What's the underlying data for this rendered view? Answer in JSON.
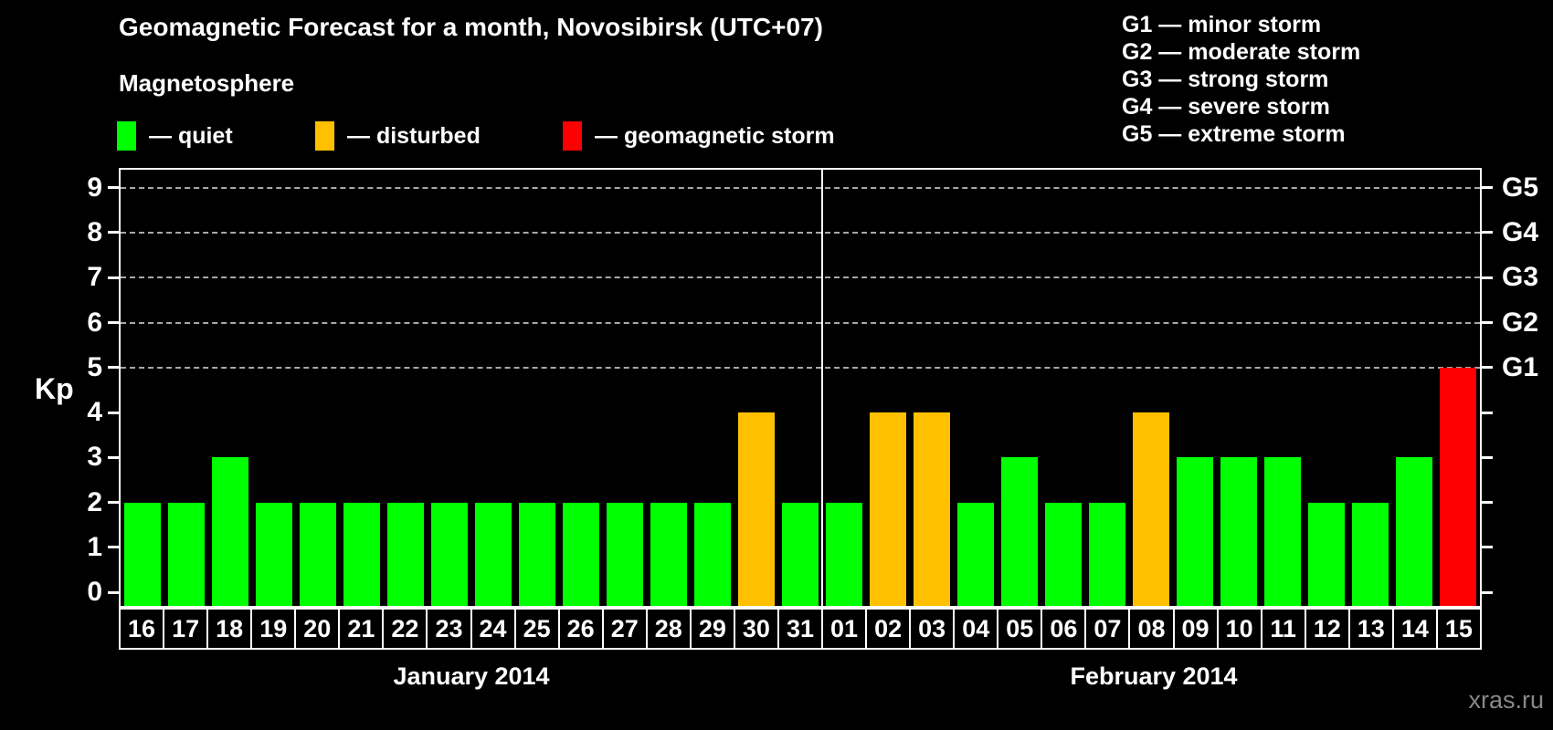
{
  "header": {
    "title": "Geomagnetic Forecast for a month, Novosibirsk (UTC+07)",
    "subtitle": "Magnetosphere"
  },
  "legend": [
    {
      "key": "quiet",
      "label": "— quiet",
      "color": "#00ff00"
    },
    {
      "key": "disturbed",
      "label": "— disturbed",
      "color": "#ffc000"
    },
    {
      "key": "storm",
      "label": "— geomagnetic storm",
      "color": "#ff0000"
    }
  ],
  "storm_scale": [
    "G1 — minor storm",
    "G2 — moderate storm",
    "G3 — strong storm",
    "G4 — severe storm",
    "G5 — extreme storm"
  ],
  "chart_data": {
    "type": "bar",
    "title": "Geomagnetic Forecast for a month, Novosibirsk (UTC+07)",
    "ylabel": "Kp",
    "ylim": [
      -0.3,
      9.4
    ],
    "yticks": [
      0,
      1,
      2,
      3,
      4,
      5,
      6,
      7,
      8,
      9
    ],
    "grid_levels": [
      5,
      6,
      7,
      8,
      9
    ],
    "right_axis": [
      {
        "kp": 5,
        "label": "G1"
      },
      {
        "kp": 6,
        "label": "G2"
      },
      {
        "kp": 7,
        "label": "G3"
      },
      {
        "kp": 8,
        "label": "G4"
      },
      {
        "kp": 9,
        "label": "G5"
      }
    ],
    "months": [
      {
        "label": "January 2014",
        "days": [
          {
            "day": "16",
            "kp": 2,
            "status": "quiet"
          },
          {
            "day": "17",
            "kp": 2,
            "status": "quiet"
          },
          {
            "day": "18",
            "kp": 3,
            "status": "quiet"
          },
          {
            "day": "19",
            "kp": 2,
            "status": "quiet"
          },
          {
            "day": "20",
            "kp": 2,
            "status": "quiet"
          },
          {
            "day": "21",
            "kp": 2,
            "status": "quiet"
          },
          {
            "day": "22",
            "kp": 2,
            "status": "quiet"
          },
          {
            "day": "23",
            "kp": 2,
            "status": "quiet"
          },
          {
            "day": "24",
            "kp": 2,
            "status": "quiet"
          },
          {
            "day": "25",
            "kp": 2,
            "status": "quiet"
          },
          {
            "day": "26",
            "kp": 2,
            "status": "quiet"
          },
          {
            "day": "27",
            "kp": 2,
            "status": "quiet"
          },
          {
            "day": "28",
            "kp": 2,
            "status": "quiet"
          },
          {
            "day": "29",
            "kp": 2,
            "status": "quiet"
          },
          {
            "day": "30",
            "kp": 4,
            "status": "disturbed"
          },
          {
            "day": "31",
            "kp": 2,
            "status": "quiet"
          }
        ]
      },
      {
        "label": "February 2014",
        "days": [
          {
            "day": "01",
            "kp": 2,
            "status": "quiet"
          },
          {
            "day": "02",
            "kp": 4,
            "status": "disturbed"
          },
          {
            "day": "03",
            "kp": 4,
            "status": "disturbed"
          },
          {
            "day": "04",
            "kp": 2,
            "status": "quiet"
          },
          {
            "day": "05",
            "kp": 3,
            "status": "quiet"
          },
          {
            "day": "06",
            "kp": 2,
            "status": "quiet"
          },
          {
            "day": "07",
            "kp": 2,
            "status": "quiet"
          },
          {
            "day": "08",
            "kp": 4,
            "status": "disturbed"
          },
          {
            "day": "09",
            "kp": 3,
            "status": "quiet"
          },
          {
            "day": "10",
            "kp": 3,
            "status": "quiet"
          },
          {
            "day": "11",
            "kp": 3,
            "status": "quiet"
          },
          {
            "day": "12",
            "kp": 2,
            "status": "quiet"
          },
          {
            "day": "13",
            "kp": 2,
            "status": "quiet"
          },
          {
            "day": "14",
            "kp": 3,
            "status": "quiet"
          },
          {
            "day": "15",
            "kp": 5,
            "status": "storm"
          }
        ]
      }
    ]
  },
  "colors": {
    "quiet": "#00ff00",
    "disturbed": "#ffc000",
    "storm": "#ff0000",
    "grid": "#a8a8a8",
    "axis": "#ffffff"
  },
  "watermark": "xras.ru"
}
